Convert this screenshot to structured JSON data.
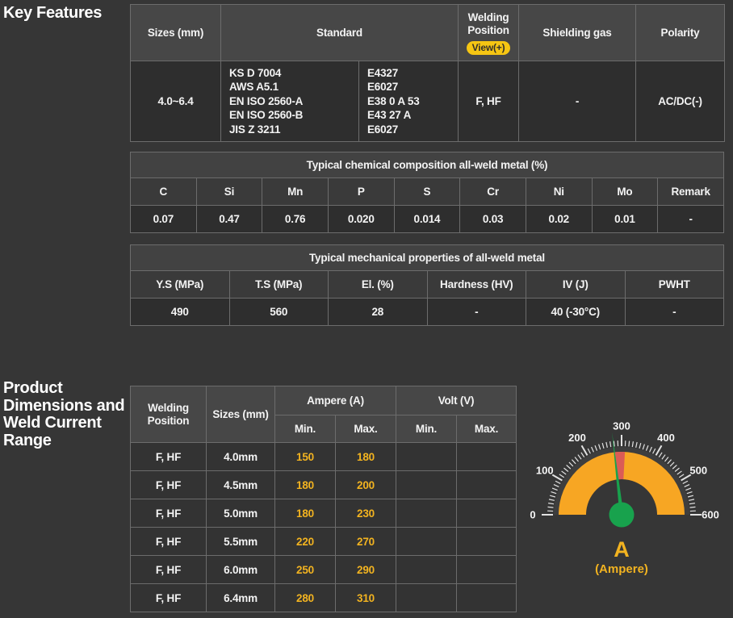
{
  "page": {
    "key_features_title": "Key Features",
    "dimensions_title_lines": [
      "Product",
      "Dimensions and",
      "Weld Current",
      "Range"
    ]
  },
  "spec_table": {
    "headers": {
      "sizes": "Sizes (mm)",
      "standard": "Standard",
      "welding_position": "Welding Position",
      "view_button": "View(+)",
      "shielding_gas": "Shielding gas",
      "polarity": "Polarity"
    },
    "row": {
      "sizes": "4.0~6.4",
      "standard_col1": [
        "KS D 7004",
        "AWS A5.1",
        "EN ISO 2560-A",
        "EN ISO 2560-B",
        "JIS Z 3211"
      ],
      "standard_col2": [
        "E4327",
        "E6027",
        "E38 0 A 53",
        "E43 27 A",
        "E6027"
      ],
      "welding_position": "F, HF",
      "shielding_gas": "-",
      "polarity": "AC/DC(-)"
    }
  },
  "chemical_table": {
    "title": "Typical chemical composition all-weld metal (%)",
    "headers": [
      "C",
      "Si",
      "Mn",
      "P",
      "S",
      "Cr",
      "Ni",
      "Mo",
      "Remark"
    ],
    "values": [
      "0.07",
      "0.47",
      "0.76",
      "0.020",
      "0.014",
      "0.03",
      "0.02",
      "0.01",
      "-"
    ]
  },
  "mechanical_table": {
    "title": "Typical mechanical properties of all-weld metal",
    "headers": [
      "Y.S (MPa)",
      "T.S (MPa)",
      "El. (%)",
      "Hardness (HV)",
      "IV (J)",
      "PWHT"
    ],
    "values": [
      "490",
      "560",
      "28",
      "-",
      "40 (-30°C)",
      "-"
    ]
  },
  "current_table": {
    "headers": {
      "welding_position": "Welding Position",
      "sizes": "Sizes (mm)",
      "ampere": "Ampere (A)",
      "volt": "Volt (V)",
      "min": "Min.",
      "max": "Max."
    },
    "rows": [
      {
        "position": "F, HF",
        "size": "4.0mm",
        "amp_min": "150",
        "amp_max": "180",
        "volt_min": "",
        "volt_max": ""
      },
      {
        "position": "F, HF",
        "size": "4.5mm",
        "amp_min": "180",
        "amp_max": "200",
        "volt_min": "",
        "volt_max": ""
      },
      {
        "position": "F, HF",
        "size": "5.0mm",
        "amp_min": "180",
        "amp_max": "230",
        "volt_min": "",
        "volt_max": ""
      },
      {
        "position": "F, HF",
        "size": "5.5mm",
        "amp_min": "220",
        "amp_max": "270",
        "volt_min": "",
        "volt_max": ""
      },
      {
        "position": "F, HF",
        "size": "6.0mm",
        "amp_min": "250",
        "amp_max": "290",
        "volt_min": "",
        "volt_max": ""
      },
      {
        "position": "F, HF",
        "size": "6.4mm",
        "amp_min": "280",
        "amp_max": "310",
        "volt_min": "",
        "volt_max": ""
      }
    ]
  },
  "gauge": {
    "type": "gauge",
    "min": 0,
    "max": 600,
    "minor_step": 10,
    "major_step": 100,
    "labels": [
      "0",
      "100",
      "200",
      "300",
      "400",
      "500",
      "600"
    ],
    "red_from": 280,
    "red_to": 310,
    "needle_value": 278,
    "band_color": "#f7a623",
    "red_color": "#db5b56",
    "needle_color": "#18a24d",
    "ring_color": "#3e3e3e",
    "tick_color": "#e2e2e2",
    "label_color": "#f5f5f5",
    "unit": "A",
    "caption": "(Ampere)"
  }
}
